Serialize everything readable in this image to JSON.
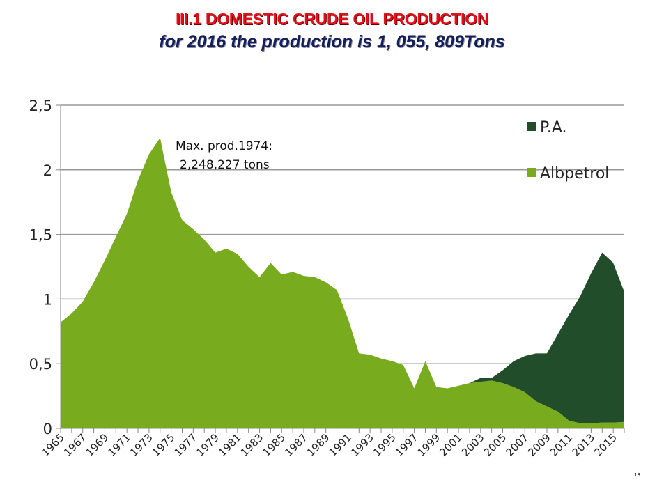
{
  "title": "III.1 DOMESTIC CRUDE OIL PRODUCTION",
  "subtitle": "for 2016 the production is 1, 055, 809Tons",
  "page_number": "18",
  "chart_data": {
    "type": "area",
    "stacked": true,
    "title": "III.1 DOMESTIC CRUDE OIL PRODUCTION",
    "xlabel": "",
    "ylabel": "",
    "ylim": [
      0,
      2.5
    ],
    "yticks": [
      0,
      0.5,
      1,
      1.5,
      2,
      2.5
    ],
    "ytick_labels": [
      "0",
      "0,5",
      "1",
      "1,5",
      "2",
      "2,5"
    ],
    "grid": true,
    "legend_position": "top-right",
    "x": [
      1965,
      1966,
      1967,
      1968,
      1969,
      1970,
      1971,
      1972,
      1973,
      1974,
      1975,
      1976,
      1977,
      1978,
      1979,
      1980,
      1981,
      1982,
      1983,
      1984,
      1985,
      1986,
      1987,
      1988,
      1989,
      1990,
      1991,
      1992,
      1993,
      1994,
      1995,
      1996,
      1997,
      1998,
      1999,
      2000,
      2001,
      2002,
      2003,
      2004,
      2005,
      2006,
      2007,
      2008,
      2009,
      2010,
      2011,
      2012,
      2013,
      2014,
      2015,
      2016
    ],
    "series": [
      {
        "name": "Albpetrol",
        "color": "#78ac1e",
        "values": [
          0.82,
          0.89,
          0.98,
          1.13,
          1.3,
          1.48,
          1.66,
          1.92,
          2.12,
          2.248,
          1.83,
          1.61,
          1.54,
          1.46,
          1.36,
          1.39,
          1.35,
          1.25,
          1.17,
          1.28,
          1.19,
          1.21,
          1.18,
          1.17,
          1.13,
          1.07,
          0.85,
          0.58,
          0.57,
          0.54,
          0.52,
          0.49,
          0.31,
          0.52,
          0.32,
          0.31,
          0.33,
          0.35,
          0.36,
          0.37,
          0.35,
          0.32,
          0.28,
          0.21,
          0.17,
          0.13,
          0.06,
          0.04,
          0.04,
          0.045,
          0.045,
          0.05
        ]
      },
      {
        "name": "P.A.",
        "color": "#214d2a",
        "values": [
          0,
          0,
          0,
          0,
          0,
          0,
          0,
          0,
          0,
          0,
          0,
          0,
          0,
          0,
          0,
          0,
          0,
          0,
          0,
          0,
          0,
          0,
          0,
          0,
          0,
          0,
          0,
          0,
          0,
          0,
          0,
          0,
          0,
          0,
          0,
          0,
          0,
          0,
          0.03,
          0.02,
          0.1,
          0.2,
          0.28,
          0.37,
          0.41,
          0.6,
          0.82,
          0.98,
          1.16,
          1.315,
          1.235,
          1.006
        ]
      }
    ],
    "annotations": [
      {
        "text_lines": [
          "Max. prod.1974:",
          "2,248,227 tons"
        ],
        "x": 1974,
        "y": 2.248
      }
    ]
  }
}
